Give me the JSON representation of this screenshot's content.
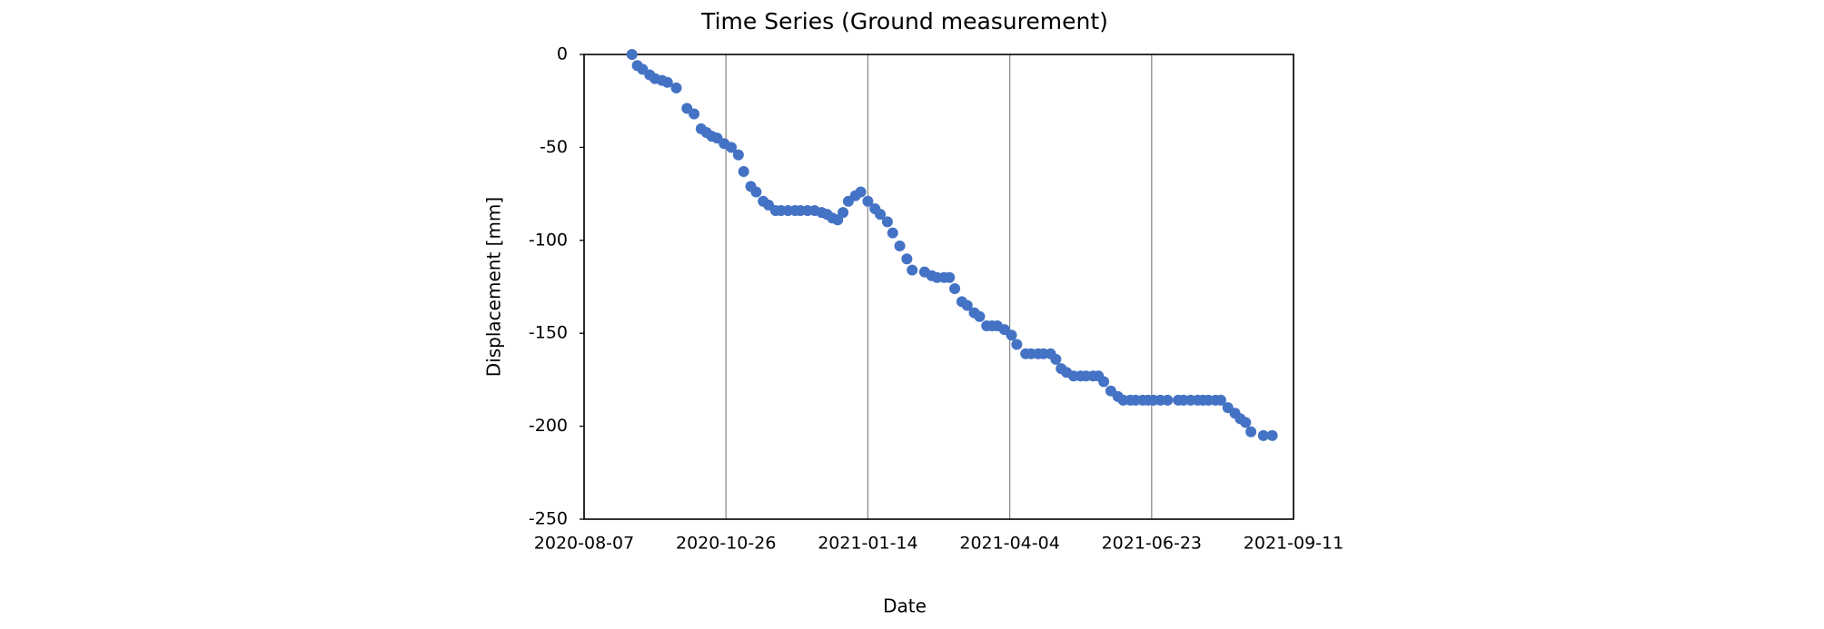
{
  "chart_data": {
    "type": "scatter",
    "title": "Time Series (Ground measurement)",
    "x_label": "Date",
    "y_label": "Displacement [mm]",
    "xlim": [
      "2020-08-07",
      "2021-09-11"
    ],
    "xticks": [
      "2020-08-07",
      "2020-10-26",
      "2021-01-14",
      "2021-04-04",
      "2021-06-23",
      "2021-09-11"
    ],
    "ylim": [
      -250,
      0
    ],
    "yticks": [
      -250,
      -200,
      -150,
      -100,
      -50,
      0
    ],
    "grid_x": true,
    "series": [
      {
        "color": "#4472c4",
        "x": [
          "2020-09-03",
          "2020-09-06",
          "2020-09-09",
          "2020-09-13",
          "2020-09-16",
          "2020-09-20",
          "2020-09-23",
          "2020-09-28",
          "2020-10-04",
          "2020-10-08",
          "2020-10-12",
          "2020-10-15",
          "2020-10-18",
          "2020-10-21",
          "2020-10-25",
          "2020-10-29",
          "2020-11-02",
          "2020-11-05",
          "2020-11-09",
          "2020-11-12",
          "2020-11-16",
          "2020-11-19",
          "2020-11-23",
          "2020-11-26",
          "2020-11-30",
          "2020-12-04",
          "2020-12-07",
          "2020-12-11",
          "2020-12-15",
          "2020-12-19",
          "2020-12-22",
          "2020-12-25",
          "2020-12-28",
          "2020-12-31",
          "2021-01-03",
          "2021-01-07",
          "2021-01-10",
          "2021-01-14",
          "2021-01-18",
          "2021-01-21",
          "2021-01-25",
          "2021-01-28",
          "2021-02-01",
          "2021-02-05",
          "2021-02-08",
          "2021-02-15",
          "2021-02-19",
          "2021-02-22",
          "2021-02-26",
          "2021-03-01",
          "2021-03-04",
          "2021-03-08",
          "2021-03-11",
          "2021-03-15",
          "2021-03-18",
          "2021-03-22",
          "2021-03-25",
          "2021-03-28",
          "2021-04-01",
          "2021-04-05",
          "2021-04-08",
          "2021-04-13",
          "2021-04-16",
          "2021-04-20",
          "2021-04-23",
          "2021-04-27",
          "2021-04-30",
          "2021-05-03",
          "2021-05-06",
          "2021-05-10",
          "2021-05-14",
          "2021-05-17",
          "2021-05-21",
          "2021-05-24",
          "2021-05-27",
          "2021-05-31",
          "2021-06-04",
          "2021-06-07",
          "2021-06-11",
          "2021-06-14",
          "2021-06-18",
          "2021-06-21",
          "2021-06-24",
          "2021-06-28",
          "2021-07-02",
          "2021-07-08",
          "2021-07-11",
          "2021-07-15",
          "2021-07-19",
          "2021-07-22",
          "2021-07-25",
          "2021-07-29",
          "2021-08-01",
          "2021-08-05",
          "2021-08-09",
          "2021-08-12",
          "2021-08-15",
          "2021-08-18",
          "2021-08-25",
          "2021-08-30"
        ],
        "values": [
          0,
          -6,
          -8,
          -11,
          -13,
          -14,
          -15,
          -18,
          -29,
          -32,
          -40,
          -42,
          -44,
          -45,
          -48,
          -50,
          -54,
          -63,
          -71,
          -74,
          -79,
          -81,
          -84,
          -84,
          -84,
          -84,
          -84,
          -84,
          -84,
          -85,
          -86,
          -88,
          -89,
          -85,
          -79,
          -76,
          -74,
          -79,
          -83,
          -86,
          -90,
          -96,
          -103,
          -110,
          -116,
          -117,
          -119,
          -120,
          -120,
          -120,
          -126,
          -133,
          -135,
          -139,
          -141,
          -146,
          -146,
          -146,
          -148,
          -151,
          -156,
          -161,
          -161,
          -161,
          -161,
          -161,
          -164,
          -169,
          -171,
          -173,
          -173,
          -173,
          -173,
          -173,
          -176,
          -181,
          -184,
          -186,
          -186,
          -186,
          -186,
          -186,
          -186,
          -186,
          -186,
          -186,
          -186,
          -186,
          -186,
          -186,
          -186,
          -186,
          -186,
          -190,
          -193,
          -196,
          -198,
          -203,
          -205,
          -205
        ]
      }
    ]
  }
}
